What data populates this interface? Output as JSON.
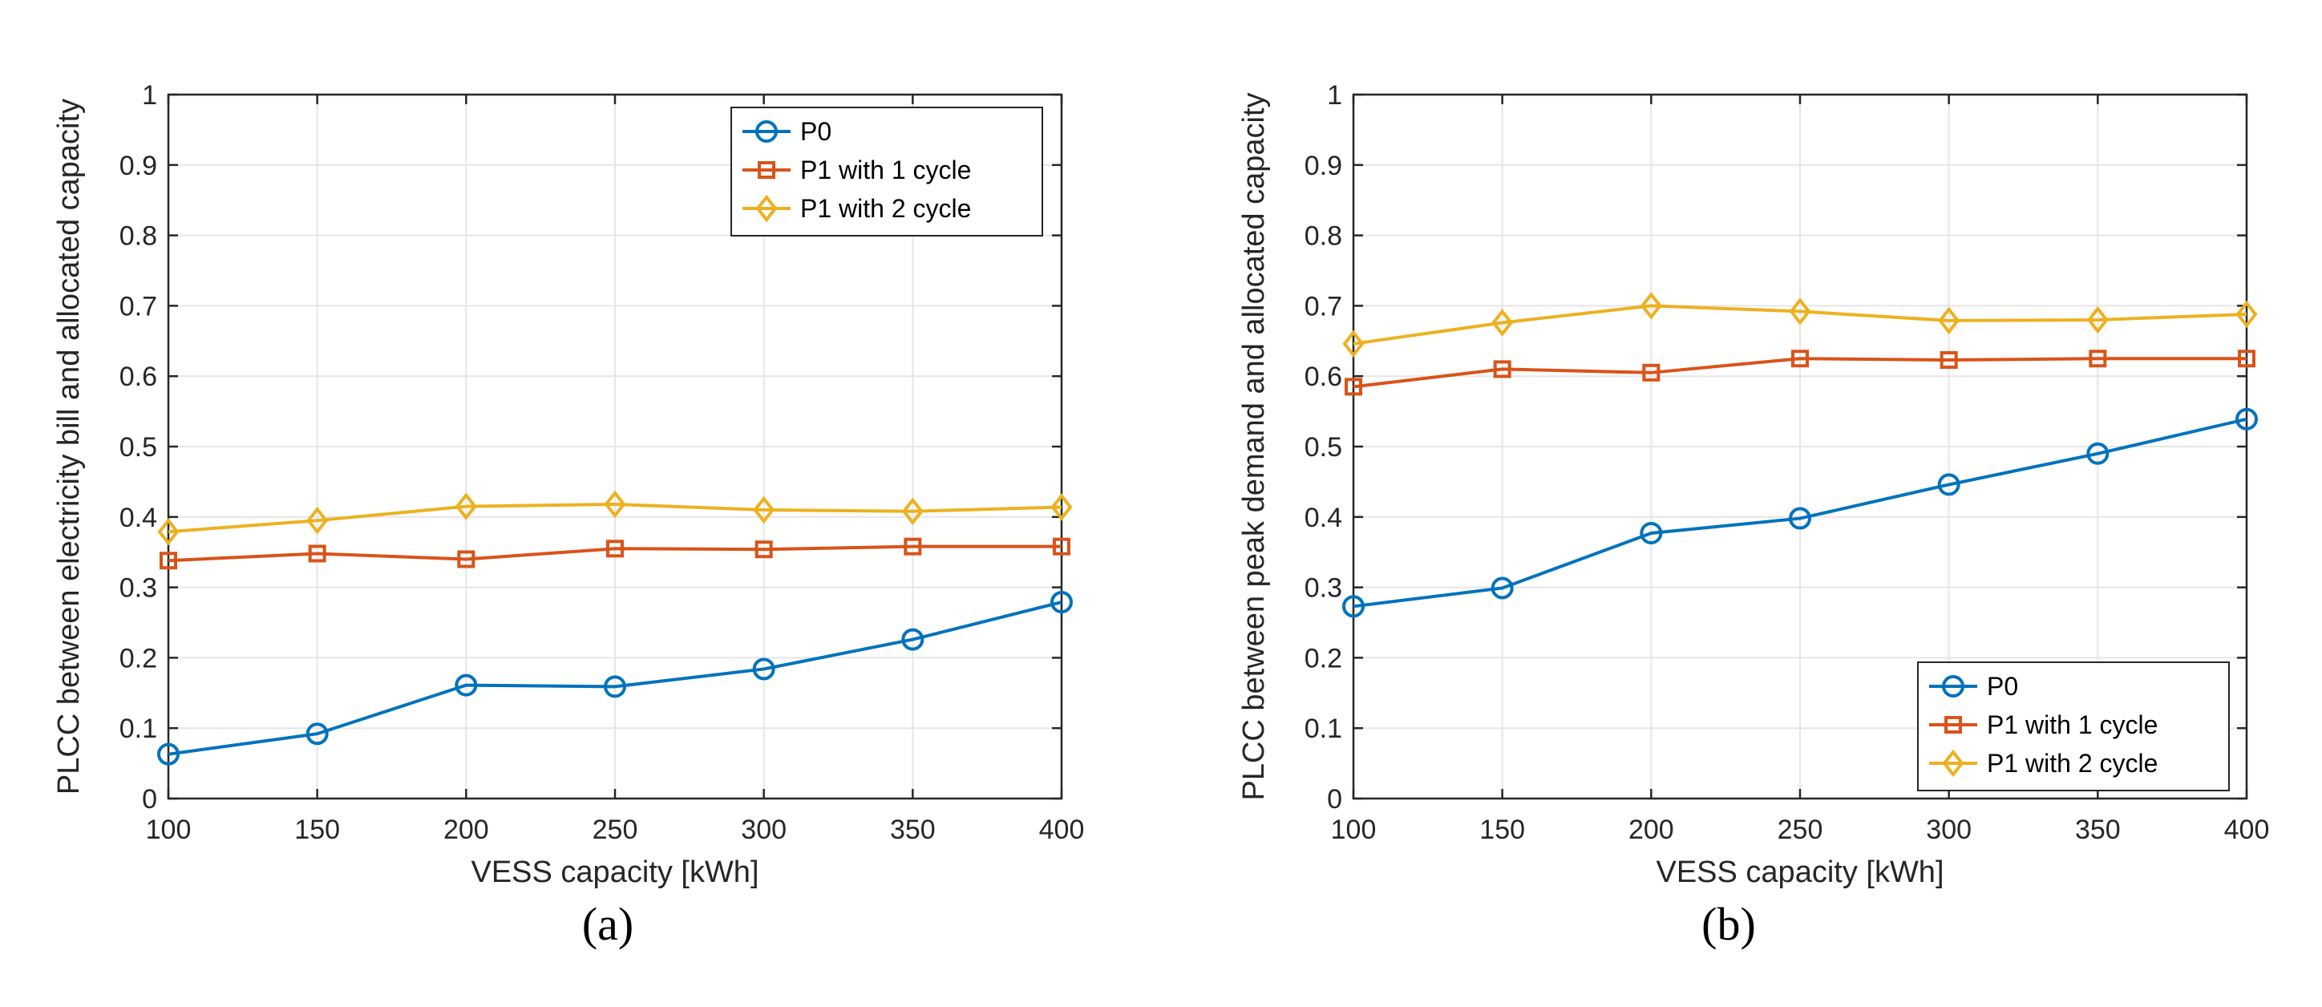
{
  "colors": {
    "p0": "#0072BD",
    "p1_1cycle": "#D95319",
    "p1_2cycle": "#EDB120",
    "grid": "#e6e6e6",
    "axis": "#262626"
  },
  "chart_data": [
    {
      "type": "line",
      "caption": "(a)",
      "xlabel": "VESS capacity [kWh]",
      "ylabel": "PLCC between electricity bill and allocated capacity",
      "x": [
        100,
        150,
        200,
        250,
        300,
        350,
        400
      ],
      "xlim": [
        100,
        400
      ],
      "ylim": [
        0,
        1
      ],
      "xticks": [
        "100",
        "150",
        "200",
        "250",
        "300",
        "350",
        "400"
      ],
      "yticks": [
        "0",
        "0.1",
        "0.2",
        "0.3",
        "0.4",
        "0.5",
        "0.6",
        "0.7",
        "0.8",
        "0.9",
        "1"
      ],
      "grid": true,
      "legend_position": "top-right",
      "series": [
        {
          "name": "P0",
          "marker": "circle",
          "color_key": "p0",
          "values": [
            0.063,
            0.092,
            0.161,
            0.159,
            0.184,
            0.226,
            0.279
          ]
        },
        {
          "name": "P1 with 1 cycle",
          "marker": "square",
          "color_key": "p1_1cycle",
          "values": [
            0.338,
            0.348,
            0.34,
            0.355,
            0.354,
            0.358,
            0.358
          ]
        },
        {
          "name": "P1 with 2 cycle",
          "marker": "diamond",
          "color_key": "p1_2cycle",
          "values": [
            0.379,
            0.395,
            0.415,
            0.418,
            0.41,
            0.408,
            0.414
          ]
        }
      ]
    },
    {
      "type": "line",
      "caption": "(b)",
      "xlabel": "VESS capacity [kWh]",
      "ylabel": "PLCC between peak demand and allocated capacity",
      "x": [
        100,
        150,
        200,
        250,
        300,
        350,
        400
      ],
      "xlim": [
        100,
        400
      ],
      "ylim": [
        0,
        1
      ],
      "xticks": [
        "100",
        "150",
        "200",
        "250",
        "300",
        "350",
        "400"
      ],
      "yticks": [
        "0",
        "0.1",
        "0.2",
        "0.3",
        "0.4",
        "0.5",
        "0.6",
        "0.7",
        "0.8",
        "0.9",
        "1"
      ],
      "grid": true,
      "legend_position": "bottom-right",
      "series": [
        {
          "name": "P0",
          "marker": "circle",
          "color_key": "p0",
          "values": [
            0.273,
            0.299,
            0.377,
            0.398,
            0.446,
            0.49,
            0.539
          ]
        },
        {
          "name": "P1 with 1 cycle",
          "marker": "square",
          "color_key": "p1_1cycle",
          "values": [
            0.585,
            0.61,
            0.605,
            0.625,
            0.623,
            0.625,
            0.625
          ]
        },
        {
          "name": "P1 with 2 cycle",
          "marker": "diamond",
          "color_key": "p1_2cycle",
          "values": [
            0.646,
            0.676,
            0.7,
            0.692,
            0.679,
            0.68,
            0.688
          ]
        }
      ]
    }
  ]
}
